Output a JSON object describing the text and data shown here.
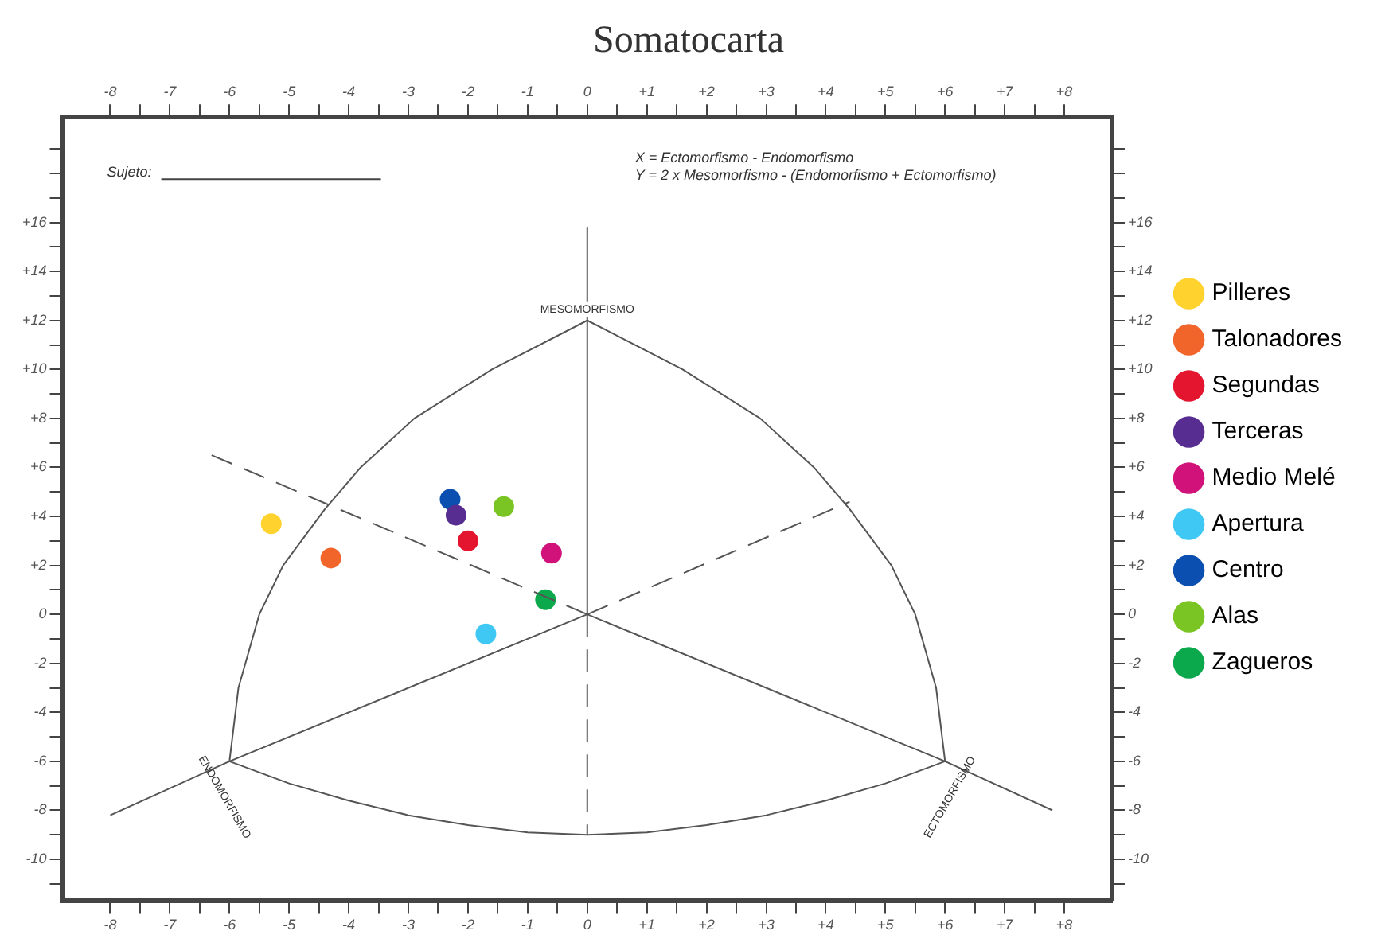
{
  "chart_data": {
    "type": "scatter",
    "title": "Somatocarta",
    "legend": "right",
    "grid": false,
    "marker": "circle",
    "xlim": [
      -8.8,
      8.8
    ],
    "ylim": [
      -11.7,
      20.3
    ],
    "x2lim": [
      -8.8,
      8.8
    ],
    "y2lim": [
      -11.7,
      20.3
    ],
    "xticks": [
      {
        "value": -8,
        "label": "-8"
      },
      {
        "value": -7.5,
        "label": null
      },
      {
        "value": -7,
        "label": "-7"
      },
      {
        "value": -6.5,
        "label": null
      },
      {
        "value": -6,
        "label": "-6"
      },
      {
        "value": -5.5,
        "label": null
      },
      {
        "value": -5,
        "label": "-5"
      },
      {
        "value": -4.5,
        "label": null
      },
      {
        "value": -4,
        "label": "-4"
      },
      {
        "value": -3.5,
        "label": null
      },
      {
        "value": -3,
        "label": "-3"
      },
      {
        "value": -2.5,
        "label": null
      },
      {
        "value": -2,
        "label": "-2"
      },
      {
        "value": -1.5,
        "label": null
      },
      {
        "value": -1,
        "label": "-1"
      },
      {
        "value": -0.5,
        "label": null
      },
      {
        "value": 0,
        "label": "0"
      },
      {
        "value": 0.5,
        "label": null
      },
      {
        "value": 1,
        "label": "+1"
      },
      {
        "value": 1.5,
        "label": null
      },
      {
        "value": 2,
        "label": "+2"
      },
      {
        "value": 2.5,
        "label": null
      },
      {
        "value": 3,
        "label": "+3"
      },
      {
        "value": 3.5,
        "label": null
      },
      {
        "value": 4,
        "label": "+4"
      },
      {
        "value": 4.5,
        "label": null
      },
      {
        "value": 5,
        "label": "+5"
      },
      {
        "value": 5.5,
        "label": null
      },
      {
        "value": 6,
        "label": "+6"
      },
      {
        "value": 6.5,
        "label": null
      },
      {
        "value": 7,
        "label": "+7"
      },
      {
        "value": 7.5,
        "label": null
      },
      {
        "value": 8,
        "label": "+8"
      }
    ],
    "x2ticks": [
      {
        "value": -8,
        "label": "-8"
      },
      {
        "value": -7.5,
        "label": null
      },
      {
        "value": -7,
        "label": "-7"
      },
      {
        "value": -6.5,
        "label": null
      },
      {
        "value": -6,
        "label": "-6"
      },
      {
        "value": -5.5,
        "label": null
      },
      {
        "value": -5,
        "label": "-5"
      },
      {
        "value": -4.5,
        "label": null
      },
      {
        "value": -4,
        "label": "-4"
      },
      {
        "value": -3.5,
        "label": null
      },
      {
        "value": -3,
        "label": "-3"
      },
      {
        "value": -2.5,
        "label": null
      },
      {
        "value": -2,
        "label": "-2"
      },
      {
        "value": -1.5,
        "label": null
      },
      {
        "value": -1,
        "label": "-1"
      },
      {
        "value": -0.5,
        "label": null
      },
      {
        "value": 0,
        "label": "0"
      },
      {
        "value": 0.5,
        "label": null
      },
      {
        "value": 1,
        "label": "+1"
      },
      {
        "value": 1.5,
        "label": null
      },
      {
        "value": 2,
        "label": "+2"
      },
      {
        "value": 2.5,
        "label": null
      },
      {
        "value": 3,
        "label": "+3"
      },
      {
        "value": 3.5,
        "label": null
      },
      {
        "value": 4,
        "label": "+4"
      },
      {
        "value": 4.5,
        "label": null
      },
      {
        "value": 5,
        "label": "+5"
      },
      {
        "value": 5.5,
        "label": null
      },
      {
        "value": 6,
        "label": "+6"
      },
      {
        "value": 6.5,
        "label": null
      },
      {
        "value": 7,
        "label": "+7"
      },
      {
        "value": 7.5,
        "label": null
      },
      {
        "value": 8,
        "label": "+8"
      }
    ],
    "yticks": [
      {
        "value": -11,
        "label": null
      },
      {
        "value": -10,
        "label": "-10"
      },
      {
        "value": -9,
        "label": null
      },
      {
        "value": -8,
        "label": "-8"
      },
      {
        "value": -7,
        "label": null
      },
      {
        "value": -6,
        "label": "-6"
      },
      {
        "value": -5,
        "label": null
      },
      {
        "value": -4,
        "label": "-4"
      },
      {
        "value": -3,
        "label": null
      },
      {
        "value": -2,
        "label": "-2"
      },
      {
        "value": -1,
        "label": null
      },
      {
        "value": 0,
        "label": "0"
      },
      {
        "value": 1,
        "label": null
      },
      {
        "value": 2,
        "label": "+2"
      },
      {
        "value": 3,
        "label": null
      },
      {
        "value": 4,
        "label": "+4"
      },
      {
        "value": 5,
        "label": null
      },
      {
        "value": 6,
        "label": "+6"
      },
      {
        "value": 7,
        "label": null
      },
      {
        "value": 8,
        "label": "+8"
      },
      {
        "value": 9,
        "label": null
      },
      {
        "value": 10,
        "label": "+10"
      },
      {
        "value": 11,
        "label": null
      },
      {
        "value": 12,
        "label": "+12"
      },
      {
        "value": 13,
        "label": null
      },
      {
        "value": 14,
        "label": "+14"
      },
      {
        "value": 15,
        "label": null
      },
      {
        "value": 16,
        "label": "+16"
      },
      {
        "value": 17,
        "label": null
      },
      {
        "value": 18,
        "label": null
      },
      {
        "value": 19,
        "label": null
      }
    ],
    "y2ticks": [
      {
        "value": -11,
        "label": null
      },
      {
        "value": -10,
        "label": "-10"
      },
      {
        "value": -9,
        "label": null
      },
      {
        "value": -8,
        "label": "-8"
      },
      {
        "value": -7,
        "label": null
      },
      {
        "value": -6,
        "label": "-6"
      },
      {
        "value": -5,
        "label": null
      },
      {
        "value": -4,
        "label": "-4"
      },
      {
        "value": -3,
        "label": null
      },
      {
        "value": -2,
        "label": "-2"
      },
      {
        "value": -1,
        "label": null
      },
      {
        "value": 0,
        "label": "0"
      },
      {
        "value": 1,
        "label": null
      },
      {
        "value": 2,
        "label": "+2"
      },
      {
        "value": 3,
        "label": null
      },
      {
        "value": 4,
        "label": "+4"
      },
      {
        "value": 5,
        "label": null
      },
      {
        "value": 6,
        "label": "+6"
      },
      {
        "value": 7,
        "label": null
      },
      {
        "value": 8,
        "label": "+8"
      },
      {
        "value": 9,
        "label": null
      },
      {
        "value": 10,
        "label": "+10"
      },
      {
        "value": 11,
        "label": null
      },
      {
        "value": 12,
        "label": "+12"
      },
      {
        "value": 13,
        "label": null
      },
      {
        "value": 14,
        "label": "+14"
      },
      {
        "value": 15,
        "label": null
      },
      {
        "value": 16,
        "label": "+16"
      },
      {
        "value": 17,
        "label": null
      },
      {
        "value": 18,
        "label": null
      },
      {
        "value": 19,
        "label": null
      }
    ],
    "annotations": [
      "Sujeto:",
      "X = Ectomorfismo - Endomorfismo",
      "Y = 2 x Mesomorfismo - (Endomorfismo + Ectomorfismo)",
      {
        "text": "MESOMORFISMO",
        "x": 0,
        "y": 12
      },
      {
        "text": "ENDOMORFISMO",
        "x": -6,
        "y": -6
      },
      {
        "text": "ECTOMORFISMO",
        "x": 6,
        "y": -6
      }
    ],
    "series": [
      {
        "type": "line",
        "line_style": "solid",
        "marker": "none",
        "color": "#555555",
        "x": [
          0,
          -1.6,
          -2.9,
          -3.8,
          -4.4,
          -5.1,
          -5.5,
          -5.85,
          -6
        ],
        "values": [
          12,
          10,
          8,
          6,
          4.3,
          2,
          0,
          -3,
          -6
        ]
      },
      {
        "type": "line",
        "line_style": "solid",
        "marker": "none",
        "color": "#555555",
        "x": [
          0,
          1.6,
          2.9,
          3.8,
          4.4,
          5.1,
          5.5,
          5.85,
          6
        ],
        "values": [
          12,
          10,
          8,
          6,
          4.3,
          2,
          0,
          -3,
          -6
        ]
      },
      {
        "type": "line",
        "line_style": "solid",
        "marker": "none",
        "color": "#555555",
        "x": [
          -6,
          -5,
          -4,
          -3,
          -2,
          -1,
          0,
          1,
          2,
          3,
          4,
          5,
          6
        ],
        "values": [
          -6,
          -6.9,
          -7.6,
          -8.2,
          -8.6,
          -8.9,
          -9,
          -8.9,
          -8.6,
          -8.2,
          -7.6,
          -6.9,
          -6
        ]
      },
      {
        "type": "line",
        "line_style": "solid",
        "marker": "none",
        "color": "#555555",
        "x": [
          0,
          0
        ],
        "values": [
          15.8,
          0
        ]
      },
      {
        "type": "line",
        "line_style": "solid",
        "marker": "none",
        "color": "#555555",
        "x": [
          -8,
          -6,
          0
        ],
        "values": [
          -8.2,
          -6,
          0
        ]
      },
      {
        "type": "line",
        "line_style": "solid",
        "marker": "none",
        "color": "#555555",
        "x": [
          7.8,
          6,
          0
        ],
        "values": [
          -8,
          -6,
          0
        ]
      },
      {
        "type": "line",
        "line_style": "dashed",
        "marker": "none",
        "color": "#555555",
        "x": [
          -6.3,
          0
        ],
        "values": [
          6.5,
          0
        ]
      },
      {
        "type": "line",
        "line_style": "dashed",
        "marker": "none",
        "color": "#555555",
        "x": [
          0,
          4.4
        ],
        "values": [
          0,
          4.6
        ]
      },
      {
        "type": "line",
        "line_style": "dashed",
        "marker": "none",
        "color": "#555555",
        "x": [
          0,
          0
        ],
        "values": [
          0,
          -9
        ]
      },
      {
        "name": "Pilleres",
        "color": "#ffd22e",
        "x": [
          -5.3
        ],
        "values": [
          3.7
        ]
      },
      {
        "name": "Talonadores",
        "color": "#f2652a",
        "x": [
          -4.3
        ],
        "values": [
          2.3
        ]
      },
      {
        "name": "Segundas",
        "color": "#e3152f",
        "x": [
          -2.0
        ],
        "values": [
          3.0
        ]
      },
      {
        "name": "Terceras",
        "color": "#582d91",
        "x": [
          -2.2
        ],
        "values": [
          4.05
        ]
      },
      {
        "name": "Medio Melé",
        "color": "#d1127a",
        "x": [
          -0.6
        ],
        "values": [
          2.5
        ]
      },
      {
        "name": "Apertura",
        "color": "#3fc8f4",
        "x": [
          -1.7
        ],
        "values": [
          -0.8
        ]
      },
      {
        "name": "Centro",
        "color": "#0b4fb0",
        "x": [
          -2.3
        ],
        "values": [
          4.7
        ]
      },
      {
        "name": "Alas",
        "color": "#7ac423",
        "x": [
          -1.4
        ],
        "values": [
          4.4
        ]
      },
      {
        "name": "Zagueros",
        "color": "#0ba94c",
        "x": [
          -0.7
        ],
        "values": [
          0.6
        ]
      }
    ]
  }
}
